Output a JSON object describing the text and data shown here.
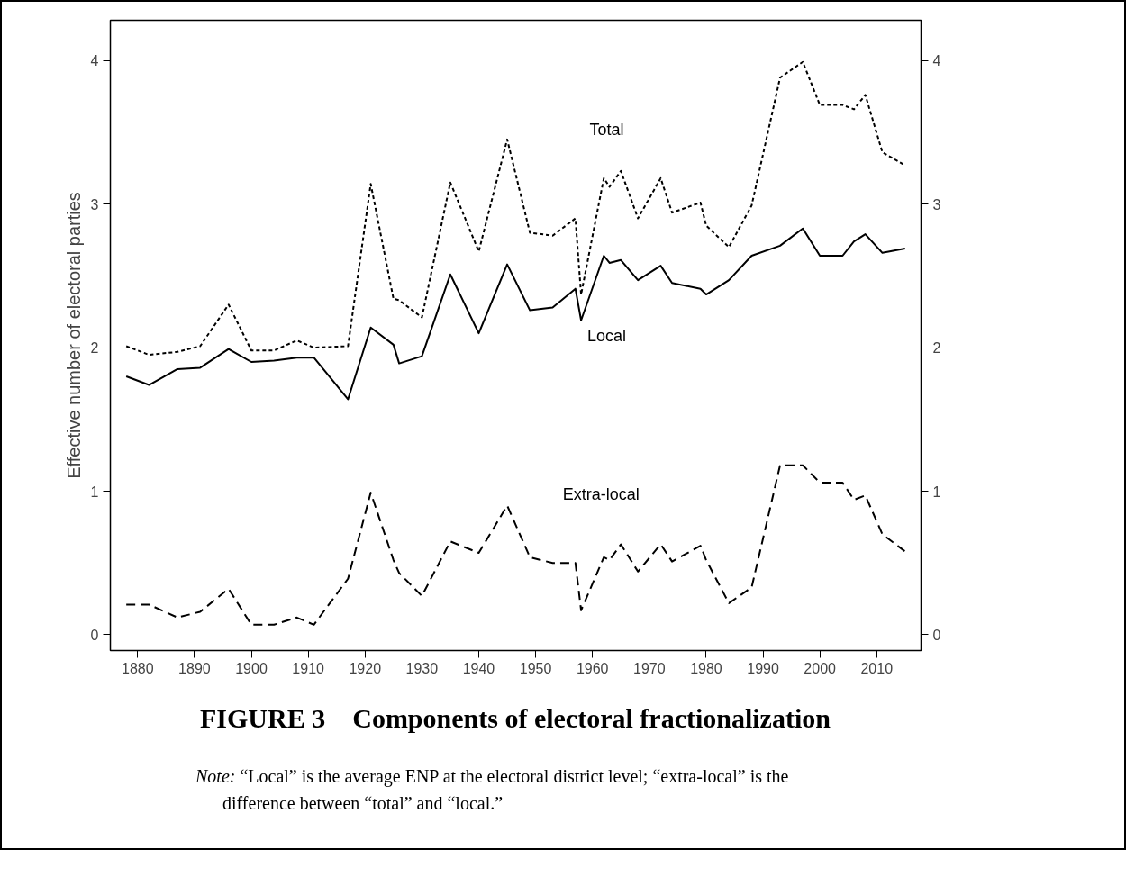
{
  "chart_data": {
    "type": "line",
    "title": "FIGURE 3 Components of electoral fractionalization",
    "ylabel": "Effective number of electoral parties",
    "annotations": [
      "Note: “Local” is the average ENP at the electoral district level; “extra-local” is the difference between “total” and “local.”"
    ],
    "x": [
      1878,
      1882,
      1887,
      1891,
      1896,
      1900,
      1904,
      1908,
      1911,
      1917,
      1921,
      1925,
      1926,
      1930,
      1935,
      1940,
      1945,
      1949,
      1953,
      1957,
      1958,
      1962,
      1963,
      1965,
      1968,
      1972,
      1974,
      1979,
      1980,
      1984,
      1988,
      1993,
      1997,
      2000,
      2004,
      2006,
      2008,
      2011,
      2015
    ],
    "series": [
      {
        "name": "Total",
        "color": "#000000",
        "line_style": "dotted",
        "values": [
          2.01,
          1.95,
          1.97,
          2.01,
          2.3,
          1.98,
          1.98,
          2.05,
          2.0,
          2.01,
          3.14,
          2.34,
          2.33,
          2.21,
          3.15,
          2.67,
          3.45,
          2.8,
          2.78,
          2.9,
          2.37,
          3.18,
          3.12,
          3.23,
          2.9,
          3.18,
          2.94,
          3.01,
          2.85,
          2.7,
          2.99,
          3.88,
          3.99,
          3.69,
          3.69,
          3.66,
          3.76,
          3.36,
          3.27
        ]
      },
      {
        "name": "Local",
        "color": "#000000",
        "line_style": "solid",
        "values": [
          1.8,
          1.74,
          1.85,
          1.86,
          1.99,
          1.9,
          1.91,
          1.93,
          1.93,
          1.64,
          2.14,
          2.02,
          1.89,
          1.94,
          2.51,
          2.1,
          2.58,
          2.26,
          2.28,
          2.41,
          2.19,
          2.64,
          2.59,
          2.61,
          2.47,
          2.57,
          2.45,
          2.41,
          2.37,
          2.47,
          2.64,
          2.71,
          2.83,
          2.64,
          2.64,
          2.74,
          2.79,
          2.66,
          2.69
        ]
      },
      {
        "name": "Extra-local",
        "color": "#000000",
        "line_style": "dashed",
        "values": [
          0.21,
          0.21,
          0.12,
          0.16,
          0.32,
          0.07,
          0.07,
          0.12,
          0.07,
          0.39,
          0.99,
          0.52,
          0.43,
          0.27,
          0.65,
          0.57,
          0.9,
          0.54,
          0.5,
          0.5,
          0.17,
          0.54,
          0.52,
          0.63,
          0.44,
          0.63,
          0.51,
          0.62,
          0.52,
          0.22,
          0.33,
          1.18,
          1.18,
          1.06,
          1.06,
          0.94,
          0.97,
          0.7,
          0.58
        ]
      }
    ],
    "xlim": [
      1875.2,
      2017.8
    ],
    "ylim": [
      -0.11,
      4.28
    ],
    "xticks": [
      1880,
      1890,
      1900,
      1910,
      1920,
      1930,
      1940,
      1950,
      1960,
      1970,
      1980,
      1990,
      2000,
      2010
    ],
    "yticks": [
      0,
      1,
      2,
      3,
      4
    ],
    "y2lim": [
      -0.11,
      4.28
    ],
    "y2ticks": [
      0,
      1,
      2,
      3,
      4
    ],
    "grid": false,
    "marker": "none"
  }
}
